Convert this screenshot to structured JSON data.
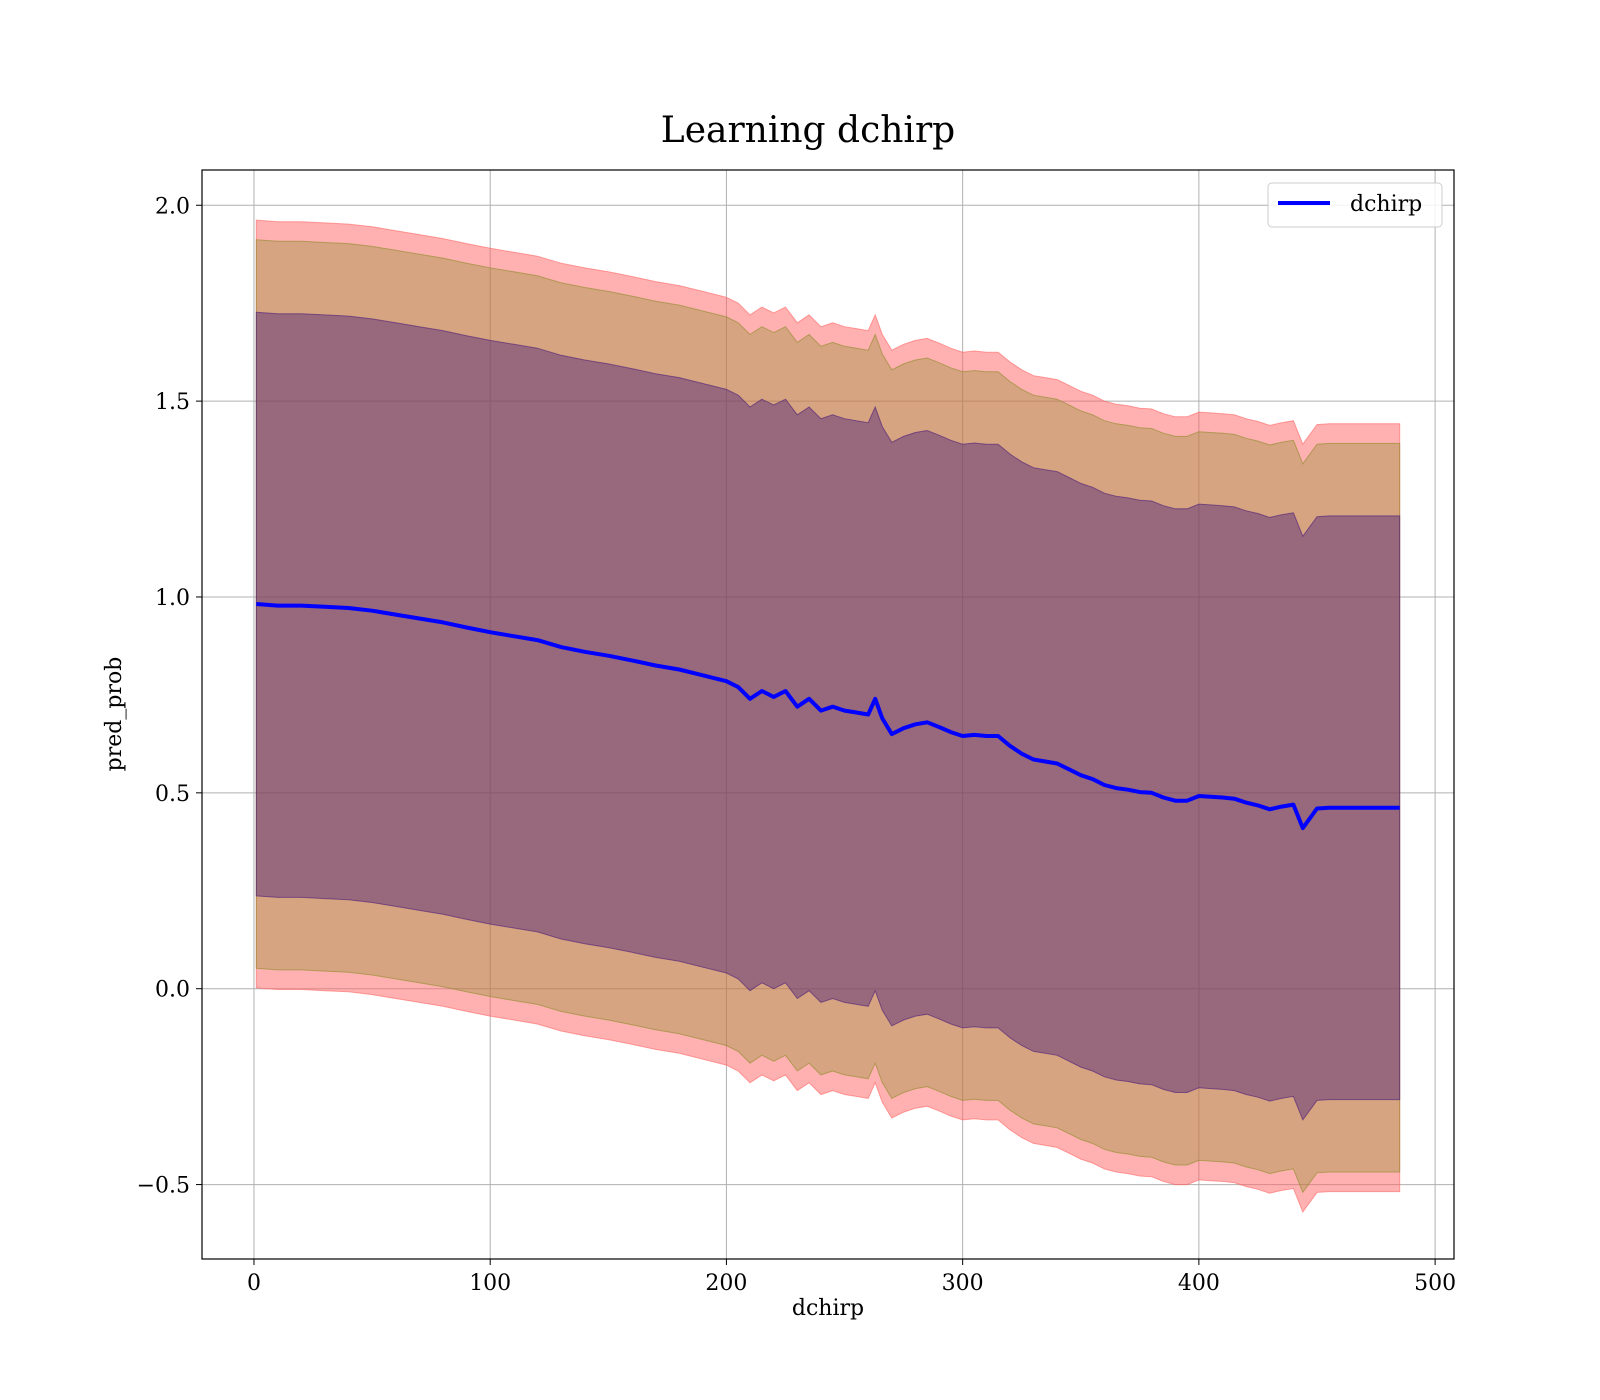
{
  "chart_data": {
    "type": "line",
    "title": "Learning dchirp",
    "xlabel": "dchirp",
    "ylabel": "pred_prob",
    "xlim": [
      -22,
      508
    ],
    "ylim": [
      -0.69,
      2.09
    ],
    "xticks": [
      0,
      100,
      200,
      300,
      400,
      500
    ],
    "xtick_labels": [
      "0",
      "100",
      "200",
      "300",
      "400",
      "500"
    ],
    "yticks": [
      -0.5,
      0.0,
      0.5,
      1.0,
      1.5,
      2.0
    ],
    "ytick_labels": [
      "−0.5",
      "0.0",
      "0.5",
      "1.0",
      "1.5",
      "2.0"
    ],
    "grid": true,
    "legend": {
      "position": "top-right",
      "entries": [
        "dchirp"
      ]
    },
    "series": [
      {
        "name": "dchirp",
        "color": "#0000ff",
        "x": [
          1,
          10,
          20,
          30,
          40,
          50,
          60,
          70,
          80,
          90,
          100,
          110,
          120,
          130,
          140,
          150,
          160,
          170,
          180,
          190,
          200,
          205,
          210,
          215,
          220,
          225,
          230,
          235,
          240,
          245,
          250,
          255,
          260,
          263,
          266,
          270,
          275,
          280,
          285,
          290,
          295,
          300,
          305,
          310,
          315,
          320,
          325,
          330,
          335,
          340,
          345,
          350,
          355,
          360,
          365,
          370,
          375,
          380,
          385,
          390,
          395,
          400,
          405,
          410,
          415,
          420,
          425,
          430,
          435,
          440,
          444,
          450,
          455,
          460,
          470,
          485
        ],
        "y": [
          0.982,
          0.978,
          0.978,
          0.975,
          0.972,
          0.965,
          0.955,
          0.945,
          0.935,
          0.922,
          0.91,
          0.9,
          0.89,
          0.872,
          0.86,
          0.85,
          0.838,
          0.825,
          0.815,
          0.8,
          0.785,
          0.77,
          0.74,
          0.76,
          0.745,
          0.76,
          0.72,
          0.74,
          0.71,
          0.72,
          0.71,
          0.705,
          0.7,
          0.74,
          0.69,
          0.65,
          0.665,
          0.675,
          0.68,
          0.668,
          0.655,
          0.645,
          0.648,
          0.645,
          0.645,
          0.62,
          0.6,
          0.585,
          0.58,
          0.575,
          0.56,
          0.545,
          0.535,
          0.52,
          0.512,
          0.508,
          0.502,
          0.5,
          0.488,
          0.48,
          0.48,
          0.492,
          0.49,
          0.488,
          0.485,
          0.475,
          0.468,
          0.458,
          0.465,
          0.47,
          0.41,
          0.46,
          0.462,
          0.462,
          0.462,
          0.462
        ]
      }
    ],
    "bands": [
      {
        "color": "#ff6464",
        "alpha": 0.5,
        "half_width": [
          0.98,
          0.98,
          0.98,
          0.98,
          0.98,
          0.98,
          0.98,
          0.98,
          0.98,
          0.98,
          0.98,
          0.98,
          0.98,
          0.98,
          0.98,
          0.98,
          0.98,
          0.98,
          0.98,
          0.98,
          0.98,
          0.98,
          0.98,
          0.98,
          0.98,
          0.98,
          0.98,
          0.98,
          0.98,
          0.98,
          0.98,
          0.98,
          0.98,
          0.98,
          0.98,
          0.98,
          0.98,
          0.98,
          0.98,
          0.98,
          0.98,
          0.98,
          0.98,
          0.98,
          0.98,
          0.98,
          0.98,
          0.98,
          0.98,
          0.98,
          0.98,
          0.98,
          0.98,
          0.98,
          0.98,
          0.98,
          0.98,
          0.98,
          0.98,
          0.98,
          0.98,
          0.98,
          0.98,
          0.98,
          0.98,
          0.98,
          0.98,
          0.98,
          0.98,
          0.98,
          0.98,
          0.98,
          0.98,
          0.98,
          0.98,
          0.98
        ]
      },
      {
        "color": "#8c8c28",
        "alpha": 0.35,
        "half_width": [
          0.93,
          0.93,
          0.93,
          0.93,
          0.93,
          0.93,
          0.93,
          0.93,
          0.93,
          0.93,
          0.93,
          0.93,
          0.93,
          0.93,
          0.93,
          0.93,
          0.93,
          0.93,
          0.93,
          0.93,
          0.93,
          0.93,
          0.93,
          0.93,
          0.93,
          0.93,
          0.93,
          0.93,
          0.93,
          0.93,
          0.93,
          0.93,
          0.93,
          0.93,
          0.93,
          0.93,
          0.93,
          0.93,
          0.93,
          0.93,
          0.93,
          0.93,
          0.93,
          0.93,
          0.93,
          0.93,
          0.93,
          0.93,
          0.93,
          0.93,
          0.93,
          0.93,
          0.93,
          0.93,
          0.93,
          0.93,
          0.93,
          0.93,
          0.93,
          0.93,
          0.93,
          0.93,
          0.93,
          0.93,
          0.93,
          0.93,
          0.93,
          0.93,
          0.93,
          0.93,
          0.93,
          0.93,
          0.93,
          0.93,
          0.93,
          0.93
        ]
      },
      {
        "color": "#4b1e78",
        "alpha": 0.45,
        "half_width": [
          0.745,
          0.745,
          0.745,
          0.745,
          0.745,
          0.745,
          0.745,
          0.745,
          0.745,
          0.745,
          0.745,
          0.745,
          0.745,
          0.745,
          0.745,
          0.745,
          0.745,
          0.745,
          0.745,
          0.745,
          0.745,
          0.745,
          0.745,
          0.745,
          0.745,
          0.745,
          0.745,
          0.745,
          0.745,
          0.745,
          0.745,
          0.745,
          0.745,
          0.745,
          0.745,
          0.745,
          0.745,
          0.745,
          0.745,
          0.745,
          0.745,
          0.745,
          0.745,
          0.745,
          0.745,
          0.745,
          0.745,
          0.745,
          0.745,
          0.745,
          0.745,
          0.745,
          0.745,
          0.745,
          0.745,
          0.745,
          0.745,
          0.745,
          0.745,
          0.745,
          0.745,
          0.745,
          0.745,
          0.745,
          0.745,
          0.745,
          0.745,
          0.745,
          0.745,
          0.745,
          0.745,
          0.745,
          0.745,
          0.745,
          0.745,
          0.745
        ]
      }
    ]
  }
}
